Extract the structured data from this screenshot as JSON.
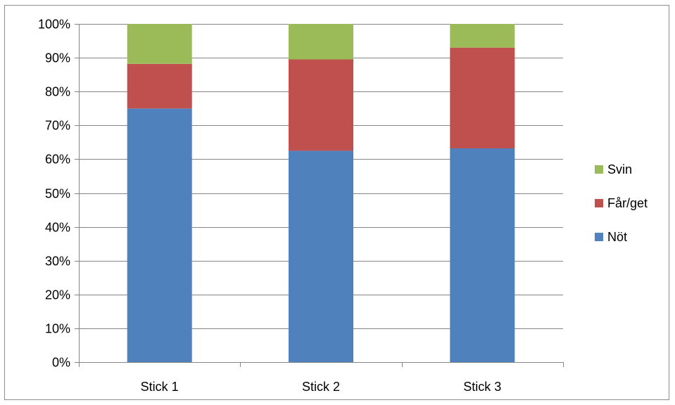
{
  "chart_data": {
    "type": "bar",
    "stacked": true,
    "percent": true,
    "categories": [
      "Stick 1",
      "Stick 2",
      "Stick 3"
    ],
    "series": [
      {
        "name": "Nöt",
        "values": [
          75.0,
          62.5,
          63.2
        ],
        "color": "#4f81bd"
      },
      {
        "name": "Får/get",
        "values": [
          13.2,
          27.0,
          29.8
        ],
        "color": "#c0504d"
      },
      {
        "name": "Svin",
        "values": [
          11.8,
          10.5,
          7.0
        ],
        "color": "#9bbb59"
      }
    ],
    "ylim": [
      0,
      100
    ],
    "yticks": [
      "0%",
      "10%",
      "20%",
      "30%",
      "40%",
      "50%",
      "60%",
      "70%",
      "80%",
      "90%",
      "100%"
    ],
    "grid": true,
    "legend": "right",
    "legend_order": [
      "Svin",
      "Får/get",
      "Nöt"
    ]
  }
}
